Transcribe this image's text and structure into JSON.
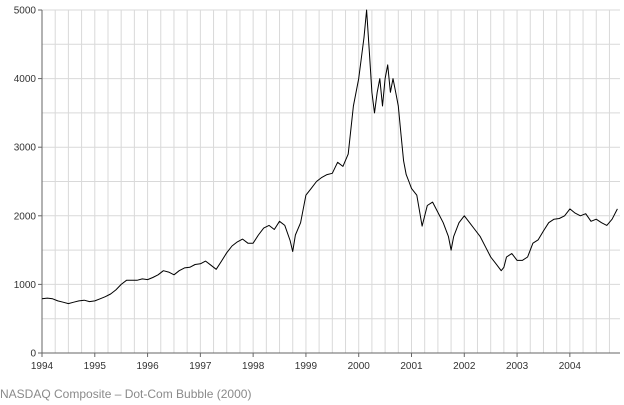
{
  "caption": "NASDAQ Composite – Dot-Com Bubble (2000)",
  "colors": {
    "line": "#000000",
    "grid": "#d9d9d9",
    "axis": "#666666",
    "caption": "#8a8a8a"
  },
  "chart_data": {
    "type": "line",
    "title": "",
    "xlabel": "",
    "ylabel": "",
    "xlim": [
      1994.0,
      2004.95
    ],
    "ylim": [
      0,
      5000
    ],
    "grid": true,
    "x_ticks": [
      1994,
      1995,
      1996,
      1997,
      1998,
      1999,
      2000,
      2001,
      2002,
      2003,
      2004
    ],
    "x_tick_labels": [
      "1994",
      "1995",
      "1996",
      "1997",
      "1998",
      "1999",
      "2000",
      "2001",
      "2002",
      "2003",
      "2004"
    ],
    "y_ticks": [
      0,
      1000,
      2000,
      3000,
      4000,
      5000
    ],
    "y_tick_labels": [
      "0",
      "1000",
      "2000",
      "3000",
      "4000",
      "5000"
    ],
    "series": [
      {
        "name": "",
        "x": [
          1994.0,
          1994.1,
          1994.2,
          1994.3,
          1994.4,
          1994.5,
          1994.6,
          1994.7,
          1994.8,
          1994.9,
          1995.0,
          1995.1,
          1995.2,
          1995.3,
          1995.4,
          1995.5,
          1995.6,
          1995.7,
          1995.8,
          1995.9,
          1996.0,
          1996.1,
          1996.2,
          1996.3,
          1996.4,
          1996.5,
          1996.6,
          1996.7,
          1996.8,
          1996.9,
          1997.0,
          1997.1,
          1997.2,
          1997.3,
          1997.4,
          1997.5,
          1997.6,
          1997.7,
          1997.8,
          1997.9,
          1998.0,
          1998.1,
          1998.2,
          1998.3,
          1998.4,
          1998.5,
          1998.6,
          1998.7,
          1998.75,
          1998.8,
          1998.9,
          1999.0,
          1999.1,
          1999.2,
          1999.3,
          1999.4,
          1999.5,
          1999.6,
          1999.7,
          1999.8,
          1999.9,
          2000.0,
          2000.1,
          2000.15,
          2000.2,
          2000.25,
          2000.3,
          2000.35,
          2000.4,
          2000.45,
          2000.5,
          2000.55,
          2000.6,
          2000.65,
          2000.7,
          2000.75,
          2000.8,
          2000.85,
          2000.9,
          2000.95,
          2001.0,
          2001.1,
          2001.2,
          2001.3,
          2001.4,
          2001.5,
          2001.6,
          2001.7,
          2001.75,
          2001.8,
          2001.9,
          2002.0,
          2002.1,
          2002.2,
          2002.3,
          2002.4,
          2002.5,
          2002.6,
          2002.7,
          2002.75,
          2002.8,
          2002.9,
          2003.0,
          2003.1,
          2003.2,
          2003.3,
          2003.4,
          2003.5,
          2003.6,
          2003.7,
          2003.8,
          2003.9,
          2004.0,
          2004.1,
          2004.2,
          2004.3,
          2004.4,
          2004.5,
          2004.6,
          2004.7,
          2004.8,
          2004.9
        ],
        "values": [
          790,
          800,
          790,
          760,
          740,
          720,
          740,
          760,
          770,
          750,
          760,
          790,
          820,
          860,
          920,
          1000,
          1060,
          1060,
          1060,
          1080,
          1070,
          1100,
          1140,
          1200,
          1180,
          1140,
          1200,
          1240,
          1250,
          1290,
          1300,
          1340,
          1280,
          1220,
          1340,
          1460,
          1560,
          1620,
          1660,
          1600,
          1600,
          1720,
          1820,
          1860,
          1800,
          1920,
          1860,
          1640,
          1480,
          1720,
          1900,
          2300,
          2400,
          2500,
          2560,
          2600,
          2620,
          2780,
          2720,
          2900,
          3600,
          4000,
          4600,
          5000,
          4400,
          3800,
          3500,
          3800,
          4000,
          3600,
          4000,
          4200,
          3800,
          4000,
          3800,
          3600,
          3200,
          2800,
          2600,
          2500,
          2400,
          2300,
          1850,
          2150,
          2200,
          2050,
          1900,
          1700,
          1500,
          1700,
          1900,
          2000,
          1900,
          1800,
          1700,
          1550,
          1400,
          1300,
          1200,
          1250,
          1400,
          1450,
          1350,
          1350,
          1400,
          1600,
          1650,
          1780,
          1900,
          1950,
          1960,
          2000,
          2100,
          2040,
          2000,
          2030,
          1920,
          1950,
          1900,
          1860,
          1950,
          2100
        ]
      }
    ]
  }
}
